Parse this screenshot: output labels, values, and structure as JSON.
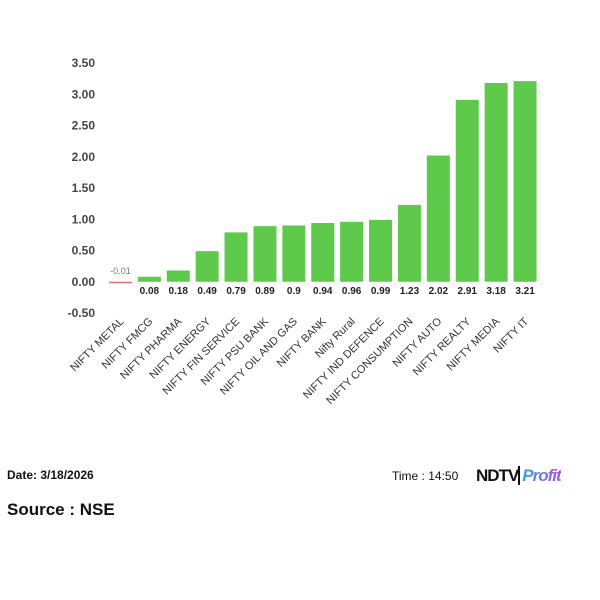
{
  "chart_data": {
    "type": "bar",
    "categories": [
      "NIFTY METAL",
      "NIFTY FMCG",
      "NIFTY PHARMA",
      "NIFTY ENERGY",
      "NIFTY FIN SERVICE",
      "NIFTY PSU BANK",
      "NIFTY OIL AND GAS",
      "NIFTY BANK",
      "Nifty Rural",
      "NIFTY IND DEFENCE",
      "NIFTY CONSUMPTION",
      "NIFTY AUTO",
      "NIFTY REALTY",
      "NIFTY MEDIA",
      "NIFTY IT"
    ],
    "values": [
      -0.01,
      0.08,
      0.18,
      0.49,
      0.79,
      0.89,
      0.9,
      0.94,
      0.96,
      0.99,
      1.23,
      2.02,
      2.91,
      3.18,
      3.21
    ],
    "data_labels": [
      "-0.01",
      "0.08",
      "0.18",
      "0.49",
      "0.79",
      "0.89",
      "0.9",
      "0.94",
      "0.96",
      "0.99",
      "1.23",
      "2.02",
      "2.91",
      "3.18",
      "3.21"
    ],
    "yticks": [
      "3.50",
      "3.00",
      "2.50",
      "2.00",
      "1.50",
      "1.00",
      "0.50",
      "0.00",
      "-0.50"
    ],
    "ylim": [
      -0.5,
      3.5
    ],
    "grid": false,
    "colors": {
      "positive": "#5ec94a",
      "negative": "#e07070"
    }
  },
  "footer": {
    "date": "Date: 3/18/2026",
    "time": "Time : 14:50",
    "source": "Source : NSE",
    "logo_ndtv": "NDTV",
    "logo_profit": "Profit"
  }
}
